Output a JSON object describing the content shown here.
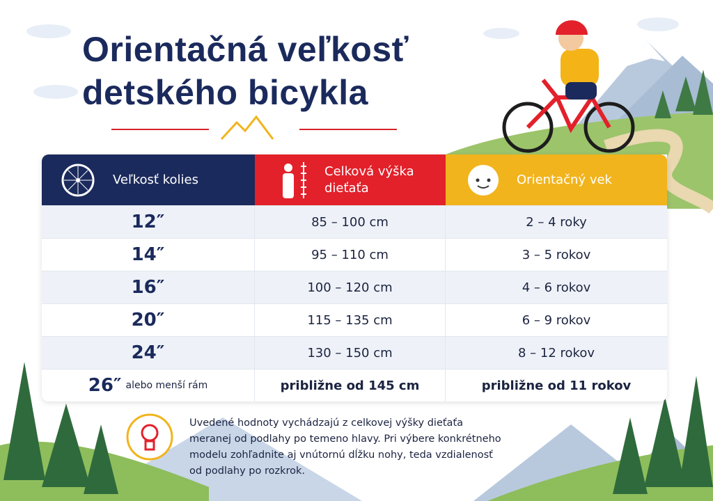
{
  "header": {
    "title": [
      "Orientačná veľkosť",
      "detského bicykla"
    ]
  },
  "table": {
    "columns": [
      "Veľkosť kolies",
      "Celková výška dieťaťa",
      "Orientačný vek"
    ],
    "rows": [
      [
        "12″",
        "85 – 100 cm",
        "2 – 4 roky"
      ],
      [
        "14″",
        "95 – 110 cm",
        "3 – 5 rokov"
      ],
      [
        "16″",
        "100 – 120 cm",
        "4 – 6 rokov"
      ],
      [
        "20″",
        "115 – 135 cm",
        "6 – 9 rokov"
      ],
      [
        "24″",
        "130 – 150 cm",
        "8 – 12 rokov"
      ],
      [
        {
          "size": "26″",
          "suffix": "alebo menší rám"
        },
        "približne od 145 cm",
        "približne od 11 rokov"
      ]
    ]
  },
  "note": {
    "lines": [
      "Uvedené hodnoty vychádzajú z celkovej výšky dieťaťa",
      "meranej od podlahy po temeno hlavy. Pri výbere konkrétneho",
      "modelu zohľadnite aj vnútornú dĺžku nohy, teda vzdialenosť",
      "od podlahy po rozkrok."
    ]
  }
}
